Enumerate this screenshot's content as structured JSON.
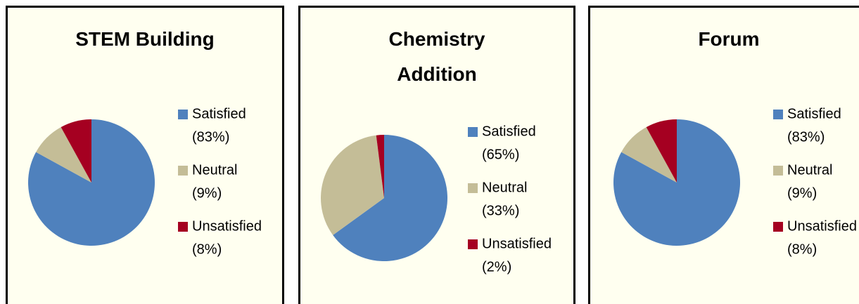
{
  "chart_data": [
    {
      "type": "pie",
      "title": "STEM Building",
      "categories": [
        "Satisfied",
        "Neutral",
        "Unsatisfied"
      ],
      "values": [
        83,
        9,
        8
      ],
      "value_labels": [
        "(83%)",
        "(9%)",
        "(8%)"
      ],
      "colors": [
        "#4f81bd",
        "#c4bd97",
        "#a50021"
      ]
    },
    {
      "type": "pie",
      "title": "Chemistry Addition",
      "categories": [
        "Satisfied",
        "Neutral",
        "Unsatisfied"
      ],
      "values": [
        65,
        33,
        2
      ],
      "value_labels": [
        "(65%)",
        "(33%)",
        "(2%)"
      ],
      "colors": [
        "#4f81bd",
        "#c4bd97",
        "#a50021"
      ]
    },
    {
      "type": "pie",
      "title": "Forum",
      "categories": [
        "Satisfied",
        "Neutral",
        "Unsatisfied"
      ],
      "values": [
        83,
        9,
        8
      ],
      "value_labels": [
        "(83%)",
        "(9%)",
        "(8%)"
      ],
      "colors": [
        "#4f81bd",
        "#c4bd97",
        "#a50021"
      ]
    }
  ]
}
